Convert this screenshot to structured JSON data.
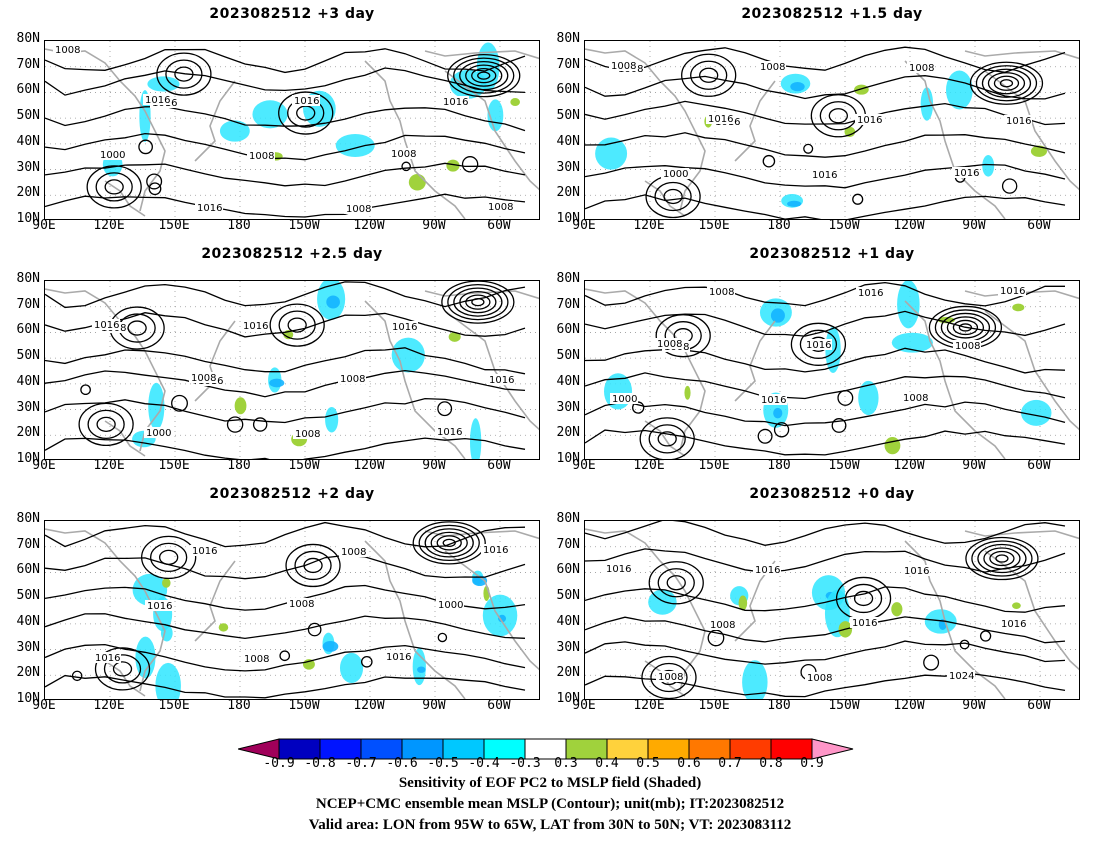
{
  "panels": [
    {
      "title": "2023082512  +3 day",
      "contour_labels": [
        "1008",
        "1016",
        "1008",
        "1008",
        "1016",
        "1000",
        "1016",
        "1016",
        "1008",
        "1008",
        "1016"
      ]
    },
    {
      "title": "2023082512  +1.5 day",
      "contour_labels": [
        "1008",
        "1016",
        "1016",
        "1008",
        "1016",
        "1000",
        "1008",
        "1016",
        "1016",
        "1008",
        "1016"
      ]
    },
    {
      "title": "2023082512  +2.5 day",
      "contour_labels": [
        "1008",
        "1016",
        "1008",
        "1016",
        "1016",
        "1000",
        "1016",
        "1008",
        "1016",
        "1016",
        "1008"
      ]
    },
    {
      "title": "2023082512  +1 day",
      "contour_labels": [
        "1008",
        "1016",
        "1016",
        "1008",
        "1000",
        "1008",
        "1016",
        "1008",
        "1016",
        "1008"
      ]
    },
    {
      "title": "2023082512  +2 day",
      "contour_labels": [
        "1016",
        "1008",
        "1008",
        "1000",
        "1016",
        "1016",
        "1008",
        "1016",
        "1016"
      ]
    },
    {
      "title": "2023082512  +0 day",
      "contour_labels": [
        "1008",
        "1008",
        "1016",
        "1016",
        "1008",
        "1016",
        "1016",
        "1024",
        "1016"
      ]
    }
  ],
  "lat_ticks": [
    "80N",
    "70N",
    "60N",
    "50N",
    "40N",
    "30N",
    "20N",
    "10N"
  ],
  "lon_ticks": [
    "90E",
    "120E",
    "150E",
    "180",
    "150W",
    "120W",
    "90W",
    "60W"
  ],
  "colorbar": {
    "labels": [
      "-0.9",
      "-0.8",
      "-0.7",
      "-0.6",
      "-0.5",
      "-0.4",
      "-0.3",
      "0.3",
      "0.4",
      "0.5",
      "0.6",
      "0.7",
      "0.8",
      "0.9"
    ],
    "colors": [
      "#a0005a",
      "#0000c0",
      "#0014ff",
      "#0050ff",
      "#0096ff",
      "#00c8ff",
      "#00ffff",
      "#ffffff",
      "#a0d23c",
      "#ffd23c",
      "#ffaa00",
      "#ff7800",
      "#ff3c00",
      "#ff0000",
      "#ff96c8"
    ]
  },
  "caption": {
    "line1": "Sensitivity of EOF PC2 to MSLP field (Shaded)",
    "line2": "NCEP+CMC ensemble mean MSLP (Contour); unit(mb); IT:2023082512",
    "line3": "Valid area: LON from 95W to 65W, LAT from 30N to 50N; VT: 2023083112"
  }
}
